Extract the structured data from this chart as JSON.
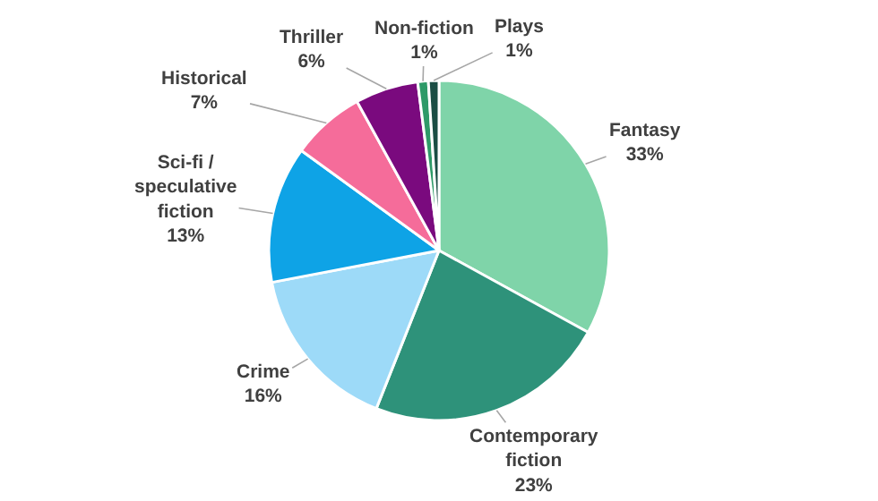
{
  "chart_data": {
    "type": "pie",
    "categories": [
      "Fantasy",
      "Contemporary fiction",
      "Crime",
      "Sci-fi / speculative fiction",
      "Historical",
      "Thriller",
      "Non-fiction",
      "Plays"
    ],
    "values": [
      33,
      23,
      16,
      13,
      7,
      6,
      1,
      1
    ],
    "value_labels": [
      "33%",
      "23%",
      "16%",
      "13%",
      "7%",
      "6%",
      "1%",
      "1%"
    ],
    "colors": [
      "#7fd4a9",
      "#2e927a",
      "#9ddaf8",
      "#0ea3e6",
      "#f56c9a",
      "#7a0a7e",
      "#2e9a68",
      "#1b4d44"
    ],
    "legend": false
  }
}
